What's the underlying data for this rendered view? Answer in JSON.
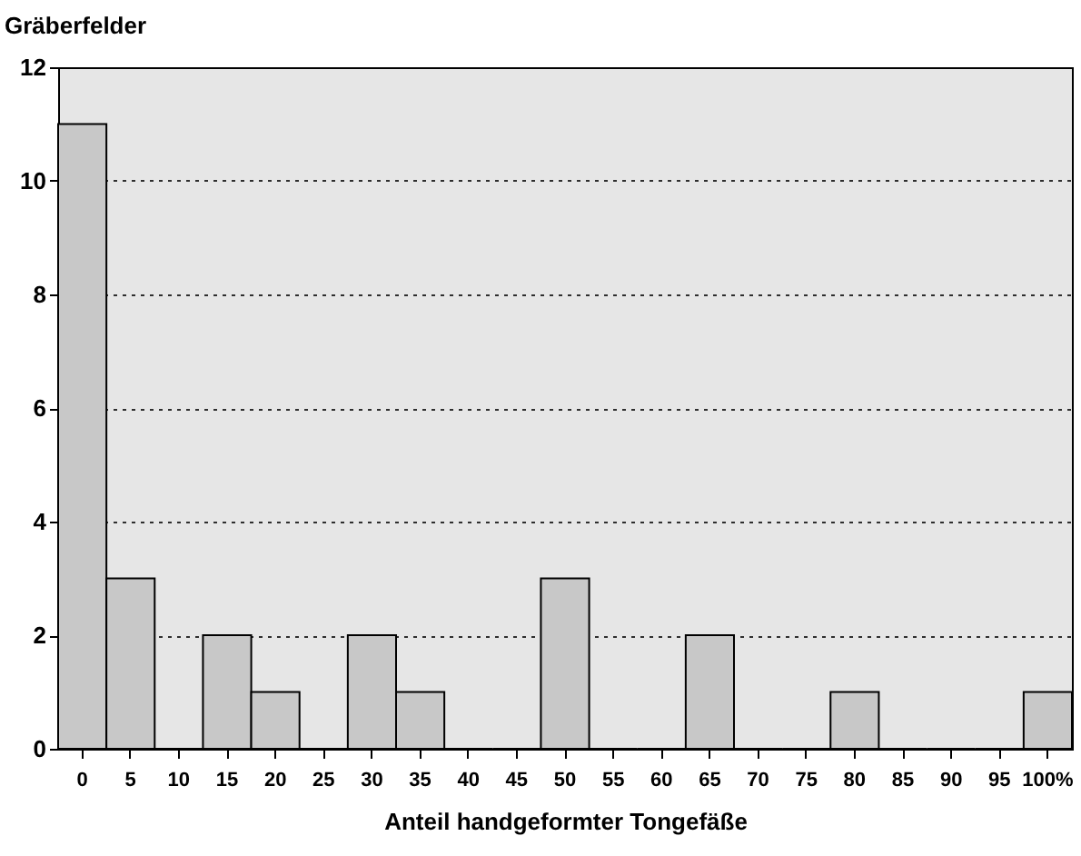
{
  "chart_data": {
    "type": "bar",
    "xlabel": "Anteil handgeformter Tongefäße",
    "ylabel": "Gräberfelder",
    "categories": [
      "0",
      "5",
      "10",
      "15",
      "20",
      "25",
      "30",
      "35",
      "40",
      "45",
      "50",
      "55",
      "60",
      "65",
      "70",
      "75",
      "80",
      "85",
      "90",
      "95",
      "100%"
    ],
    "values": [
      11,
      3,
      0,
      2,
      1,
      0,
      2,
      1,
      0,
      0,
      3,
      0,
      0,
      2,
      0,
      0,
      1,
      0,
      0,
      0,
      1
    ],
    "color": "#c8c8c8",
    "ylim": [
      0,
      12
    ],
    "yticks": [
      0,
      2,
      4,
      6,
      8,
      10,
      12
    ],
    "grid": "y"
  }
}
